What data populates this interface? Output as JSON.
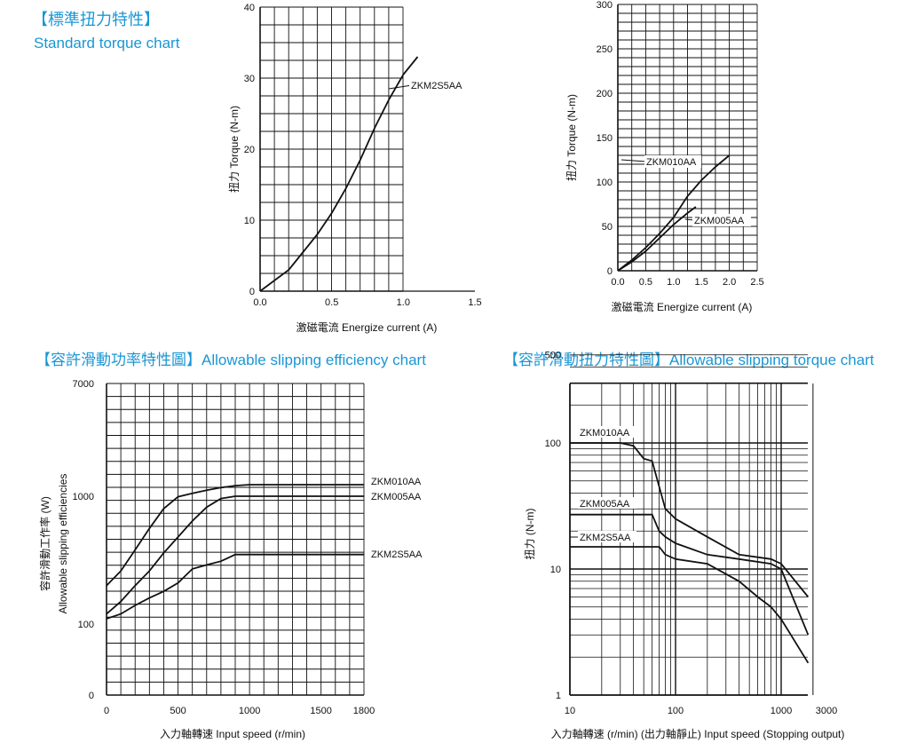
{
  "headings": {
    "standard_zh": "【標準扭力特性】",
    "standard_en": "Standard torque chart",
    "efficiency": "【容許滑動功率特性圖】Allowable slipping efficiency chart",
    "slip_torque": "【容許滑動扭力特性圖】Allowable slipping torque chart"
  },
  "colors": {
    "title": "#1a96d4",
    "ink": "#111111"
  },
  "chart_data": [
    {
      "id": "std1",
      "type": "line",
      "xlabel": "激磁電流 Energize current (A)",
      "ylabel": "扭力 Torque (N-m)",
      "xlim": [
        0,
        1.5
      ],
      "ylim": [
        0,
        40
      ],
      "xticks": [
        "0.0",
        "0.5",
        "1.0",
        "1.5"
      ],
      "yticks": [
        "0",
        "10",
        "20",
        "30",
        "40"
      ],
      "grid": true,
      "series": [
        {
          "name": "ZKM2S5AA",
          "x": [
            0,
            0.1,
            0.2,
            0.3,
            0.4,
            0.5,
            0.6,
            0.7,
            0.8,
            0.9,
            1.0,
            1.1
          ],
          "y": [
            0,
            1.5,
            3,
            5.5,
            8,
            11,
            14.5,
            18.5,
            23,
            27,
            30.5,
            33
          ]
        }
      ]
    },
    {
      "id": "std2",
      "type": "line",
      "xlabel": "激磁電流 Energize current (A)",
      "ylabel": "扭力 Torque (N-m)",
      "xlim": [
        0,
        2.5
      ],
      "ylim": [
        0,
        300
      ],
      "xticks": [
        "0.0",
        "0.5",
        "1.0",
        "1.5",
        "2.0",
        "2.5"
      ],
      "yticks": [
        "0",
        "50",
        "100",
        "150",
        "200",
        "250",
        "300"
      ],
      "grid": true,
      "series": [
        {
          "name": "ZKM010AA",
          "x": [
            0,
            0.25,
            0.5,
            0.75,
            1.0,
            1.25,
            1.5,
            1.75,
            2.0
          ],
          "y": [
            0,
            12,
            26,
            42,
            60,
            84,
            102,
            117,
            130
          ]
        },
        {
          "name": "ZKM005AA",
          "x": [
            0,
            0.25,
            0.5,
            0.75,
            1.0,
            1.25,
            1.4
          ],
          "y": [
            0,
            10,
            22,
            37,
            52,
            65,
            72
          ]
        }
      ]
    },
    {
      "id": "eff",
      "type": "line",
      "xlabel": "入力軸轉速 Input speed (r/min)",
      "ylabel": "容許滑動工作率 (W)",
      "ylabel2": "Allowable slipping efficiencies",
      "xlim": [
        0,
        1800
      ],
      "ylim": [
        0,
        7000
      ],
      "xticks": [
        "0",
        "500",
        "1000",
        "1500",
        "1800"
      ],
      "yticks": [
        "0",
        "100",
        "1000",
        "7000"
      ],
      "grid": true,
      "series": [
        {
          "name": "ZKM010AA",
          "x": [
            0,
            100,
            200,
            300,
            400,
            500,
            600,
            700,
            800,
            900,
            1000,
            1100,
            1200,
            1300,
            1400,
            1500,
            1600,
            1700,
            1800
          ],
          "y": [
            200,
            260,
            380,
            560,
            800,
            990,
            1050,
            1110,
            1160,
            1200,
            1220,
            1220,
            1220,
            1220,
            1220,
            1220,
            1220,
            1220,
            1220
          ]
        },
        {
          "name": "ZKM005AA",
          "x": [
            0,
            100,
            200,
            300,
            400,
            500,
            600,
            700,
            800,
            900,
            1000,
            1100,
            1200,
            1300,
            1400,
            1500,
            1600,
            1700,
            1800
          ],
          "y": [
            120,
            150,
            200,
            260,
            360,
            480,
            640,
            820,
            960,
            1000,
            1000,
            1000,
            1000,
            1000,
            1000,
            1000,
            1000,
            1000,
            1000
          ]
        },
        {
          "name": "ZKM2S5AA",
          "x": [
            0,
            100,
            200,
            300,
            400,
            500,
            600,
            700,
            800,
            900,
            1000,
            1100,
            1200,
            1300,
            1400,
            1500,
            1600,
            1700,
            1800
          ],
          "y": [
            110,
            120,
            140,
            160,
            180,
            210,
            270,
            290,
            310,
            350,
            350,
            350,
            350,
            350,
            350,
            350,
            350,
            350,
            350
          ]
        }
      ]
    },
    {
      "id": "slip",
      "type": "line",
      "log_x": true,
      "log_y": true,
      "xlabel": "入力軸轉速 (r/min) (出力軸靜止) Input speed (Stopping output)",
      "ylabel": "扭力 (N-m)",
      "xlim": [
        10,
        3000
      ],
      "ylim": [
        1,
        500
      ],
      "xticks": [
        "10",
        "100",
        "1000",
        "3000"
      ],
      "yticks": [
        "1",
        "10",
        "100",
        "500"
      ],
      "grid": true,
      "series": [
        {
          "name": "ZKM010AA",
          "x": [
            10,
            30,
            40,
            50,
            60,
            80,
            100,
            200,
            400,
            800,
            1000,
            1800
          ],
          "y": [
            100,
            100,
            95,
            75,
            72,
            30,
            25,
            18,
            13,
            12,
            11,
            6
          ]
        },
        {
          "name": "ZKM005AA",
          "x": [
            10,
            40,
            60,
            70,
            80,
            100,
            200,
            400,
            800,
            1000,
            1800
          ],
          "y": [
            27,
            27,
            27,
            20,
            18,
            16,
            13,
            12,
            11,
            10,
            3
          ]
        },
        {
          "name": "ZKM2S5AA",
          "x": [
            10,
            50,
            70,
            80,
            100,
            200,
            400,
            600,
            800,
            1000,
            1800
          ],
          "y": [
            15,
            15,
            15,
            13,
            12,
            11,
            8,
            6,
            5,
            4,
            1.8
          ]
        }
      ]
    }
  ]
}
